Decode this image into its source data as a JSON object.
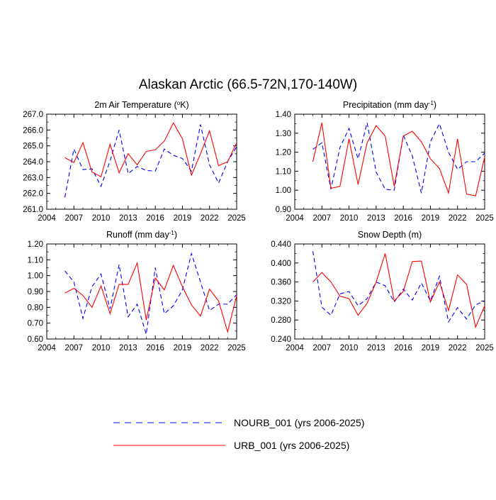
{
  "figure": {
    "title": "Alaskan Arctic (66.5-72N,170-140W)"
  },
  "legend": [
    {
      "label": "NOURB_001 (yrs 2006-2025)",
      "color": "#0000ff",
      "dash": true
    },
    {
      "label": "URB_001 (yrs 2006-2025)",
      "color": "#ff0000",
      "dash": false
    }
  ],
  "chart_data": [
    {
      "type": "line",
      "title_main": "2m Air Temperature (",
      "title_sup": "o",
      "title_tail": "K)",
      "xlim": [
        2004,
        2025
      ],
      "xticks": [
        2004,
        2007,
        2010,
        2013,
        2016,
        2019,
        2022,
        2025
      ],
      "ylim": [
        261.0,
        267.0
      ],
      "yticks": [
        "261.0",
        "262.0",
        "263.0",
        "264.0",
        "265.0",
        "266.0",
        "267.0"
      ],
      "x": [
        2006,
        2007,
        2008,
        2009,
        2010,
        2011,
        2012,
        2013,
        2014,
        2015,
        2016,
        2017,
        2018,
        2019,
        2020,
        2021,
        2022,
        2023,
        2024,
        2025
      ],
      "series": [
        {
          "name": "NOURB_001 (yrs 2006-2025)",
          "values": [
            261.75,
            264.8,
            263.5,
            263.55,
            262.45,
            264.05,
            266.0,
            263.25,
            263.7,
            263.45,
            263.4,
            264.8,
            264.4,
            264.2,
            263.4,
            266.35,
            263.8,
            262.65,
            264.0,
            264.95
          ]
        },
        {
          "name": "URB_001 (yrs 2006-2025)",
          "values": [
            264.25,
            263.95,
            265.2,
            263.35,
            263.05,
            265.1,
            263.3,
            264.5,
            263.8,
            264.65,
            264.75,
            265.3,
            266.45,
            265.45,
            263.15,
            264.5,
            265.95,
            263.75,
            264.0,
            265.2
          ]
        }
      ]
    },
    {
      "type": "line",
      "title_main": "Precipitation (mm day",
      "title_sup": "-1",
      "title_tail": ")",
      "xlim": [
        2004,
        2025
      ],
      "xticks": [
        2004,
        2007,
        2010,
        2013,
        2016,
        2019,
        2022,
        2025
      ],
      "ylim": [
        0.9,
        1.4
      ],
      "yticks": [
        "0.90",
        "1.00",
        "1.10",
        "1.20",
        "1.30",
        "1.40"
      ],
      "x": [
        2006,
        2007,
        2008,
        2009,
        2010,
        2011,
        2012,
        2013,
        2014,
        2015,
        2016,
        2017,
        2018,
        2019,
        2020,
        2021,
        2022,
        2023,
        2024,
        2025
      ],
      "series": [
        {
          "name": "NOURB_001 (yrs 2006-2025)",
          "values": [
            1.215,
            1.25,
            1.005,
            1.225,
            1.325,
            1.165,
            1.355,
            1.095,
            1.005,
            1.0,
            1.29,
            1.18,
            0.985,
            1.255,
            1.35,
            1.2,
            1.11,
            1.15,
            1.15,
            1.195
          ]
        },
        {
          "name": "URB_001 (yrs 2006-2025)",
          "values": [
            1.15,
            1.355,
            1.01,
            1.02,
            1.27,
            1.03,
            1.25,
            1.34,
            1.285,
            1.02,
            1.285,
            1.31,
            1.255,
            1.165,
            1.115,
            0.985,
            1.27,
            0.98,
            0.97,
            1.175
          ]
        }
      ]
    },
    {
      "type": "line",
      "title_main": "Runoff (mm day",
      "title_sup": "-1",
      "title_tail": ")",
      "xlim": [
        2004,
        2025
      ],
      "xticks": [
        2004,
        2007,
        2010,
        2013,
        2016,
        2019,
        2022,
        2025
      ],
      "ylim": [
        0.6,
        1.2
      ],
      "yticks": [
        "0.60",
        "0.70",
        "0.80",
        "0.90",
        "1.00",
        "1.10",
        "1.20"
      ],
      "x": [
        2006,
        2007,
        2008,
        2009,
        2010,
        2011,
        2012,
        2013,
        2014,
        2015,
        2016,
        2017,
        2018,
        2019,
        2020,
        2021,
        2022,
        2023,
        2024,
        2025
      ],
      "series": [
        {
          "name": "NOURB_001 (yrs 2006-2025)",
          "values": [
            1.03,
            0.96,
            0.73,
            0.93,
            1.01,
            0.79,
            1.07,
            0.74,
            0.82,
            0.63,
            1.05,
            0.76,
            0.81,
            0.91,
            1.14,
            0.96,
            0.78,
            0.82,
            0.82,
            0.88
          ]
        },
        {
          "name": "URB_001 (yrs 2006-2025)",
          "values": [
            0.89,
            0.92,
            0.875,
            0.8,
            0.935,
            0.76,
            0.945,
            0.945,
            1.08,
            0.72,
            0.985,
            0.91,
            1.065,
            0.93,
            0.815,
            0.745,
            0.915,
            0.84,
            0.645,
            0.875
          ]
        }
      ]
    },
    {
      "type": "line",
      "title_main": "Snow Depth (m)",
      "title_sup": "",
      "title_tail": "",
      "xlim": [
        2004,
        2025
      ],
      "xticks": [
        2004,
        2007,
        2010,
        2013,
        2016,
        2019,
        2022,
        2025
      ],
      "ylim": [
        0.24,
        0.44
      ],
      "yticks": [
        "0.240",
        "0.280",
        "0.320",
        "0.360",
        "0.400",
        "0.440"
      ],
      "x": [
        2006,
        2007,
        2008,
        2009,
        2010,
        2011,
        2012,
        2013,
        2014,
        2015,
        2016,
        2017,
        2018,
        2019,
        2020,
        2021,
        2022,
        2023,
        2024,
        2025
      ],
      "series": [
        {
          "name": "NOURB_001 (yrs 2006-2025)",
          "values": [
            0.425,
            0.307,
            0.29,
            0.335,
            0.34,
            0.31,
            0.325,
            0.36,
            0.352,
            0.318,
            0.345,
            0.322,
            0.358,
            0.32,
            0.372,
            0.276,
            0.306,
            0.282,
            0.312,
            0.32
          ]
        },
        {
          "name": "URB_001 (yrs 2006-2025)",
          "values": [
            0.36,
            0.38,
            0.36,
            0.33,
            0.325,
            0.29,
            0.315,
            0.36,
            0.42,
            0.32,
            0.34,
            0.403,
            0.404,
            0.318,
            0.36,
            0.3,
            0.375,
            0.355,
            0.265,
            0.31
          ]
        }
      ]
    }
  ]
}
